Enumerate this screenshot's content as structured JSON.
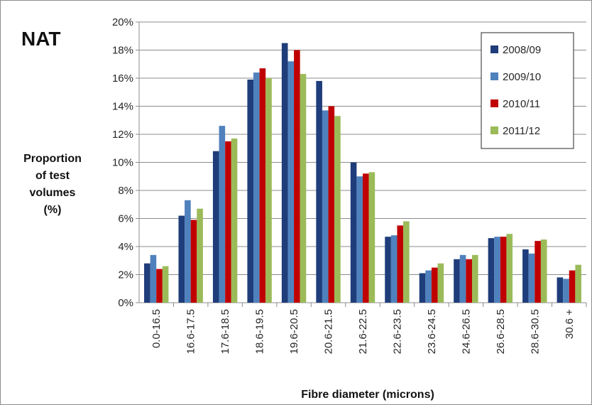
{
  "chart_data": {
    "type": "bar",
    "title": "NAT",
    "xlabel": "Fibre diameter (microns)",
    "ylabel": [
      "Proportion",
      "of test",
      "volumes",
      "(%)"
    ],
    "ylim": [
      0,
      20
    ],
    "yticks": [
      "0%",
      "2%",
      "4%",
      "6%",
      "8%",
      "10%",
      "12%",
      "14%",
      "16%",
      "18%",
      "20%"
    ],
    "grid": true,
    "legend_position": "top-right",
    "categories": [
      "0.0-16.5",
      "16.6-17.5",
      "17.6-18.5",
      "18.6-19.5",
      "19.6-20.5",
      "20.6-21.5",
      "21.6-22.5",
      "22.6-23.5",
      "23.6-24.5",
      "24.6-26.5",
      "26.6-28.5",
      "28.6-30.5",
      "30.6 +"
    ],
    "series": [
      {
        "name": "2008/09",
        "color": "#1f3d7a",
        "values": [
          2.8,
          6.2,
          10.8,
          15.9,
          18.5,
          15.8,
          10.0,
          4.7,
          2.1,
          3.1,
          4.6,
          3.8,
          1.8
        ]
      },
      {
        "name": "2009/10",
        "color": "#4f81bd",
        "values": [
          3.4,
          7.3,
          12.6,
          16.4,
          17.2,
          13.7,
          9.0,
          4.8,
          2.3,
          3.4,
          4.7,
          3.5,
          1.7
        ]
      },
      {
        "name": "2010/11",
        "color": "#c00000",
        "values": [
          2.4,
          5.9,
          11.5,
          16.7,
          18.0,
          14.0,
          9.2,
          5.5,
          2.5,
          3.1,
          4.7,
          4.4,
          2.3
        ]
      },
      {
        "name": "2011/12",
        "color": "#9bbb59",
        "values": [
          2.6,
          6.7,
          11.7,
          16.0,
          16.3,
          13.3,
          9.3,
          5.8,
          2.8,
          3.4,
          4.9,
          4.5,
          2.7
        ]
      }
    ]
  }
}
